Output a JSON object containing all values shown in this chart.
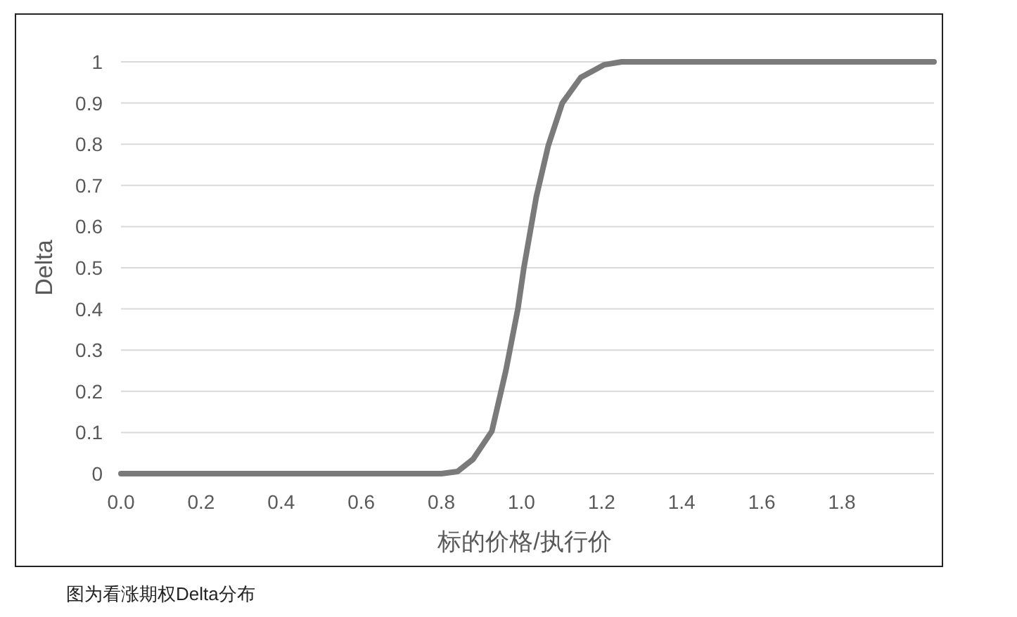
{
  "chart_data": {
    "type": "line",
    "xlabel": "标的价格/执行价",
    "ylabel": "Delta",
    "annotations": [
      "图为看涨期权Delta分布"
    ],
    "x": [
      0,
      0.4,
      0.8,
      0.84,
      0.879,
      0.926,
      0.961,
      0.991,
      1.006,
      1.037,
      1.067,
      1.102,
      1.148,
      1.207,
      1.25,
      1.6,
      2.03
    ],
    "series": [
      {
        "color": "#7a7a7a",
        "values": [
          0,
          0,
          0,
          0.005,
          0.035,
          0.103,
          0.25,
          0.4,
          0.5,
          0.672,
          0.797,
          0.9,
          0.962,
          0.993,
          1,
          1,
          1
        ]
      }
    ],
    "xlim": [
      0,
      2.03
    ],
    "ylim": [
      0,
      1
    ],
    "xticks": [
      {
        "value": 0,
        "label": "0.0"
      },
      0.2,
      0.4,
      0.6,
      0.8,
      {
        "value": 1,
        "label": "1.0"
      },
      1.2,
      1.4,
      1.6,
      1.8
    ],
    "yticks": [
      0,
      0.1,
      0.2,
      0.3,
      0.4,
      0.5,
      0.6,
      0.7,
      0.8,
      0.9,
      1
    ],
    "grid": "y"
  }
}
